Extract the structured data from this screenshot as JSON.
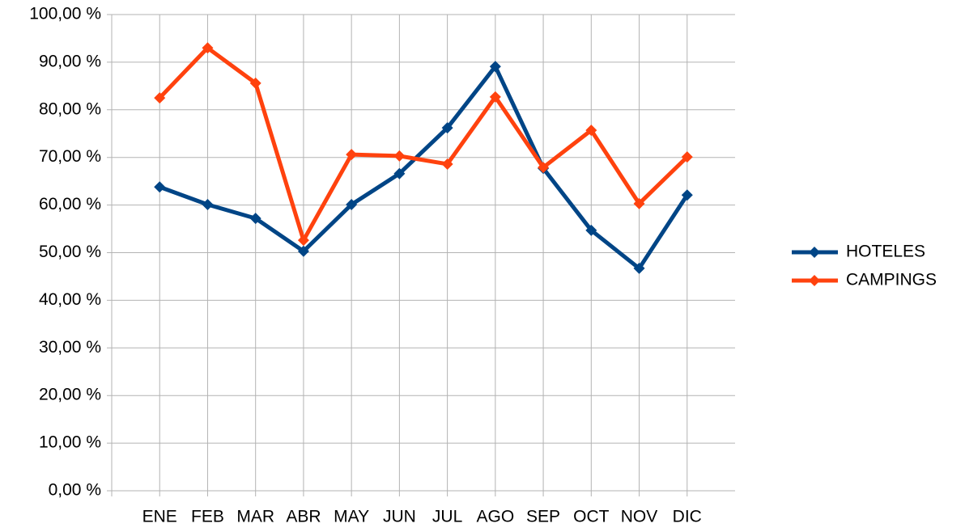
{
  "chart_data": {
    "type": "line",
    "categories": [
      "ENE",
      "FEB",
      "MAR",
      "ABR",
      "MAY",
      "JUN",
      "JUL",
      "AGO",
      "SEP",
      "OCT",
      "NOV",
      "DIC"
    ],
    "series": [
      {
        "name": "HOTELES",
        "color": "#004586",
        "values": [
          63.8,
          60.1,
          57.2,
          50.3,
          60.1,
          66.6,
          76.2,
          89.1,
          67.7,
          54.7,
          46.7,
          62.1
        ]
      },
      {
        "name": "CAMPINGS",
        "color": "#ff420e",
        "values": [
          82.5,
          93.0,
          85.6,
          52.6,
          70.6,
          70.3,
          68.6,
          82.7,
          67.9,
          75.7,
          60.3,
          70.1
        ]
      }
    ],
    "ylim": [
      0,
      100
    ],
    "yticks": [
      {
        "value": 0,
        "label": "0,00 %"
      },
      {
        "value": 10,
        "label": "10,00 %"
      },
      {
        "value": 20,
        "label": "20,00 %"
      },
      {
        "value": 30,
        "label": "30,00 %"
      },
      {
        "value": 40,
        "label": "40,00 %"
      },
      {
        "value": 50,
        "label": "50,00 %"
      },
      {
        "value": 60,
        "label": "60,00 %"
      },
      {
        "value": 70,
        "label": "70,00 %"
      },
      {
        "value": 80,
        "label": "80,00 %"
      },
      {
        "value": 90,
        "label": "90,00 %"
      },
      {
        "value": 100,
        "label": "100,00 %"
      }
    ],
    "grid": true,
    "legend": "right"
  }
}
